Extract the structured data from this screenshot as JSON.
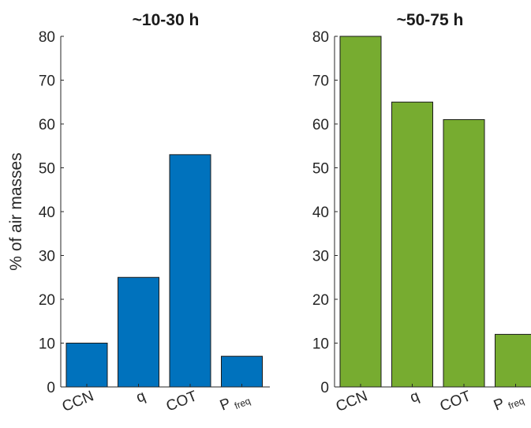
{
  "chart_data": [
    {
      "type": "bar",
      "title": "~10-30 h",
      "ylabel": "% of air masses",
      "xlabel": "",
      "categories": [
        "CCN",
        "q",
        "COT",
        "P freq"
      ],
      "category_parts": [
        {
          "main": "CCN",
          "sub": ""
        },
        {
          "main": "q",
          "sub": ""
        },
        {
          "main": "COT",
          "sub": ""
        },
        {
          "main": "P",
          "sub": "freq"
        }
      ],
      "values": [
        10,
        25,
        53,
        7
      ],
      "ylim": [
        0,
        80
      ],
      "yticks": [
        "0",
        "10",
        "20",
        "30",
        "40",
        "50",
        "60",
        "70",
        "80"
      ],
      "color": "#0072BD",
      "grid": false
    },
    {
      "type": "bar",
      "title": "~50-75 h",
      "ylabel": "",
      "xlabel": "",
      "categories": [
        "CCN",
        "q",
        "COT",
        "P freq"
      ],
      "category_parts": [
        {
          "main": "CCN",
          "sub": ""
        },
        {
          "main": "q",
          "sub": ""
        },
        {
          "main": "COT",
          "sub": ""
        },
        {
          "main": "P",
          "sub": "freq"
        }
      ],
      "values": [
        80,
        65,
        61,
        12
      ],
      "ylim": [
        0,
        80
      ],
      "yticks": [
        "0",
        "10",
        "20",
        "30",
        "40",
        "50",
        "60",
        "70",
        "80"
      ],
      "color": "#77AC30",
      "grid": false
    }
  ]
}
